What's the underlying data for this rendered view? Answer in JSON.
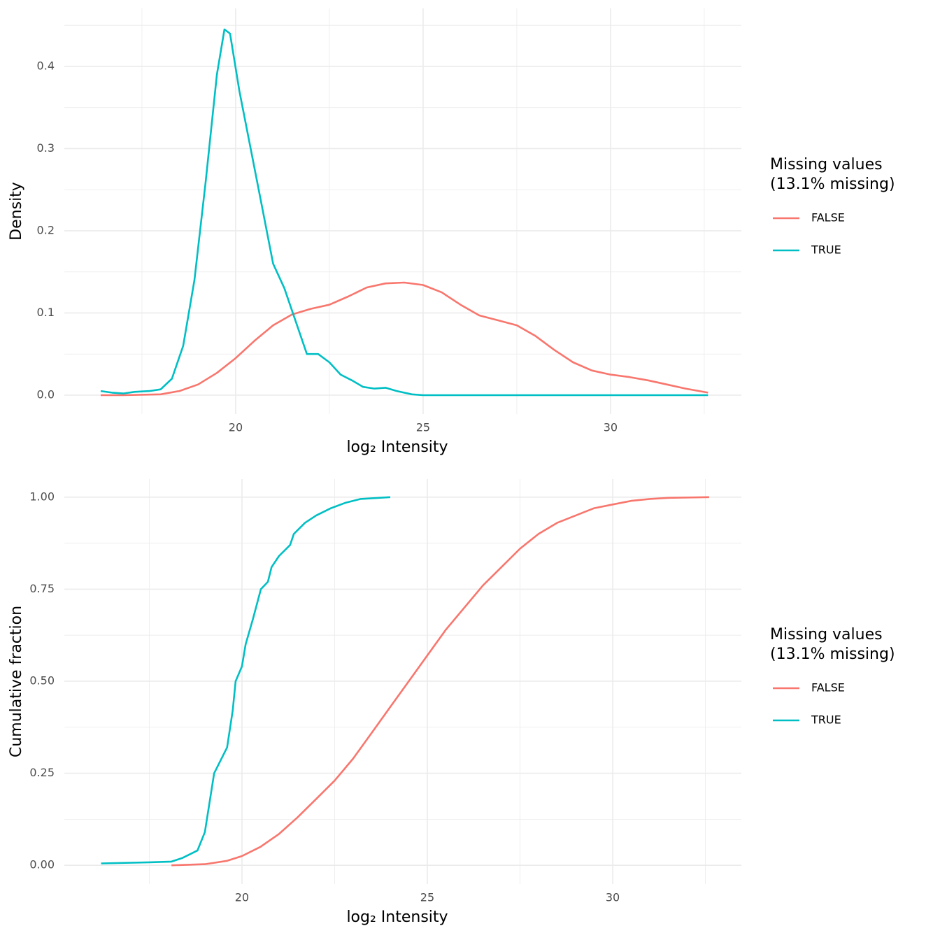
{
  "chart_data": [
    {
      "type": "line",
      "xlabel": "log₂ Intensity",
      "ylabel": "Density",
      "legend_title": [
        "Missing values",
        "(13.1% missing)"
      ],
      "legend": "right",
      "grid": true,
      "xlim": [
        15.43,
        33.49
      ],
      "xticks": [
        20,
        25,
        30
      ],
      "ylim": [
        -0.023,
        0.4706
      ],
      "yticks": [
        {
          "value": 0,
          "label": "0.0"
        },
        0.1,
        0.2,
        0.3,
        0.4
      ],
      "series": [
        {
          "name": "FALSE",
          "color": "#F8766D",
          "x": [
            16.4,
            17,
            18,
            18.5,
            19,
            19.5,
            20,
            20.5,
            21,
            21.5,
            22,
            22.5,
            23,
            23.5,
            24,
            24.5,
            25,
            25.5,
            26,
            26.5,
            27,
            27.5,
            28,
            28.5,
            29,
            29.5,
            30,
            30.5,
            31,
            31.5,
            32,
            32.6
          ],
          "values": [
            0,
            0,
            0.001,
            0.005,
            0.013,
            0.027,
            0.045,
            0.066,
            0.085,
            0.098,
            0.105,
            0.11,
            0.12,
            0.131,
            0.136,
            0.137,
            0.134,
            0.125,
            0.11,
            0.097,
            0.091,
            0.085,
            0.072,
            0.055,
            0.04,
            0.03,
            0.025,
            0.022,
            0.018,
            0.013,
            0.008,
            0.003
          ]
        },
        {
          "name": "TRUE",
          "color": "#00BFC4",
          "x": [
            16.4,
            16.7,
            17,
            17.3,
            17.7,
            18,
            18.3,
            18.6,
            18.9,
            19.2,
            19.5,
            19.7,
            19.85,
            20.1,
            20.4,
            20.7,
            21,
            21.3,
            21.6,
            21.9,
            22.2,
            22.5,
            22.8,
            23.1,
            23.4,
            23.7,
            24,
            24.3,
            24.7,
            25,
            28,
            32.6
          ],
          "values": [
            0.005,
            0.003,
            0.002,
            0.004,
            0.005,
            0.007,
            0.02,
            0.06,
            0.14,
            0.26,
            0.39,
            0.445,
            0.44,
            0.37,
            0.3,
            0.23,
            0.16,
            0.13,
            0.09,
            0.05,
            0.05,
            0.04,
            0.025,
            0.018,
            0.01,
            0.008,
            0.009,
            0.005,
            0.001,
            0,
            0,
            0
          ]
        }
      ]
    },
    {
      "type": "line",
      "xlabel": "log₂ Intensity",
      "ylabel": "Cumulative fraction",
      "legend_title": [
        "Missing values",
        "(13.1% missing)"
      ],
      "legend": "right",
      "grid": true,
      "xlim": [
        15.21,
        33.47
      ],
      "xticks": [
        20,
        25,
        30
      ],
      "ylim": [
        -0.051,
        1.049
      ],
      "yticks": [
        {
          "value": 0,
          "label": "0.00"
        },
        0.25,
        {
          "value": 0.5,
          "label": "0.50"
        },
        0.75,
        {
          "value": 1,
          "label": "1.00"
        }
      ],
      "series": [
        {
          "name": "FALSE",
          "color": "#F8766D",
          "x": [
            18.1,
            19,
            19.6,
            20,
            20.5,
            21,
            21.5,
            22,
            22.5,
            23,
            23.5,
            24,
            24.5,
            25,
            25.5,
            26,
            26.5,
            27,
            27.5,
            28,
            28.5,
            29,
            29.5,
            30,
            30.5,
            31,
            31.5,
            32.6
          ],
          "values": [
            0,
            0.003,
            0.012,
            0.025,
            0.05,
            0.085,
            0.13,
            0.18,
            0.23,
            0.29,
            0.36,
            0.43,
            0.5,
            0.57,
            0.64,
            0.7,
            0.76,
            0.81,
            0.86,
            0.9,
            0.93,
            0.95,
            0.97,
            0.98,
            0.99,
            0.995,
            0.998,
            1
          ]
        },
        {
          "name": "TRUE",
          "color": "#00BFC4",
          "x": [
            16.2,
            17.5,
            18.1,
            18.4,
            18.8,
            19,
            19.25,
            19.4,
            19.6,
            19.75,
            19.83,
            20,
            20.1,
            20.3,
            20.51,
            20.7,
            20.8,
            21,
            21.3,
            21.4,
            21.7,
            22,
            22.4,
            22.8,
            23.2,
            24
          ],
          "values": [
            0.005,
            0.008,
            0.01,
            0.02,
            0.04,
            0.09,
            0.25,
            0.28,
            0.32,
            0.42,
            0.5,
            0.54,
            0.6,
            0.67,
            0.75,
            0.77,
            0.81,
            0.84,
            0.87,
            0.9,
            0.93,
            0.95,
            0.97,
            0.985,
            0.995,
            1
          ]
        }
      ]
    }
  ]
}
